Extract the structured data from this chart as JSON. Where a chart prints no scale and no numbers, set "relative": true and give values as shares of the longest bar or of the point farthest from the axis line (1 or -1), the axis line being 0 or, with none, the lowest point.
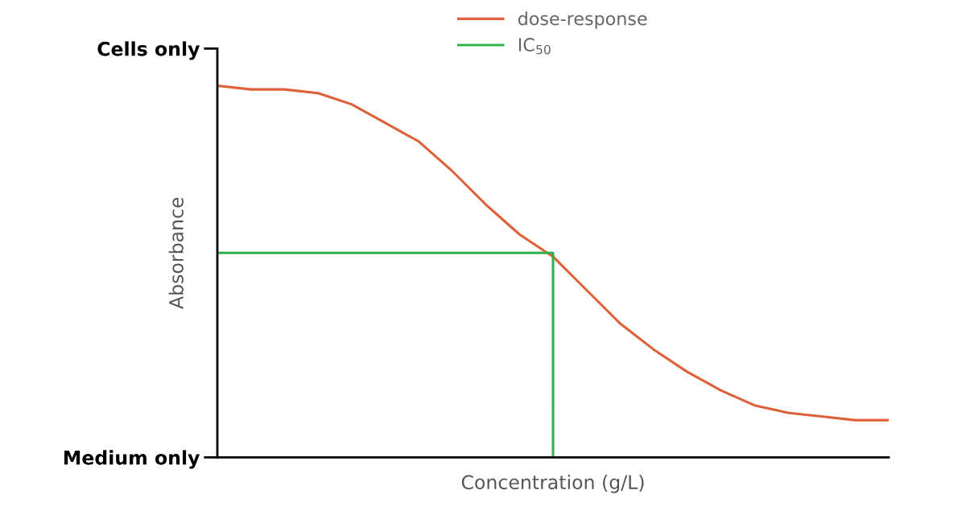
{
  "chart_data": {
    "type": "line",
    "xlabel": "Concentration (g/L)",
    "ylabel": "Absorbance",
    "categories": [
      null,
      null,
      null,
      null,
      null,
      null,
      null,
      null,
      null,
      null,
      null,
      null,
      null,
      null,
      null,
      null,
      null,
      null,
      null,
      null,
      null
    ],
    "relative": true,
    "annotations": [
      "Cells only",
      "Medium only"
    ],
    "legend": "top",
    "grid": false,
    "series": [
      {
        "name": "dose-response",
        "color": "#e0603a",
        "values": [
          1,
          0.99,
          0.99,
          0.98,
          0.95,
          0.9,
          0.85,
          0.77,
          0.68,
          0.6,
          0.54,
          0.45,
          0.36,
          0.29,
          0.23,
          0.18,
          0.14,
          0.12,
          0.11,
          0.1,
          0.1
        ]
      },
      {
        "name": "IC$_{50}$",
        "type": "step",
        "color": "#2db34a",
        "values": [
          0.55,
          0.55,
          0.55,
          0.55,
          0.55,
          0.55,
          0.55,
          0.55,
          0.55,
          0.55,
          0,
          null,
          null,
          null,
          null,
          null,
          null,
          null,
          null,
          null,
          null
        ]
      }
    ]
  }
}
